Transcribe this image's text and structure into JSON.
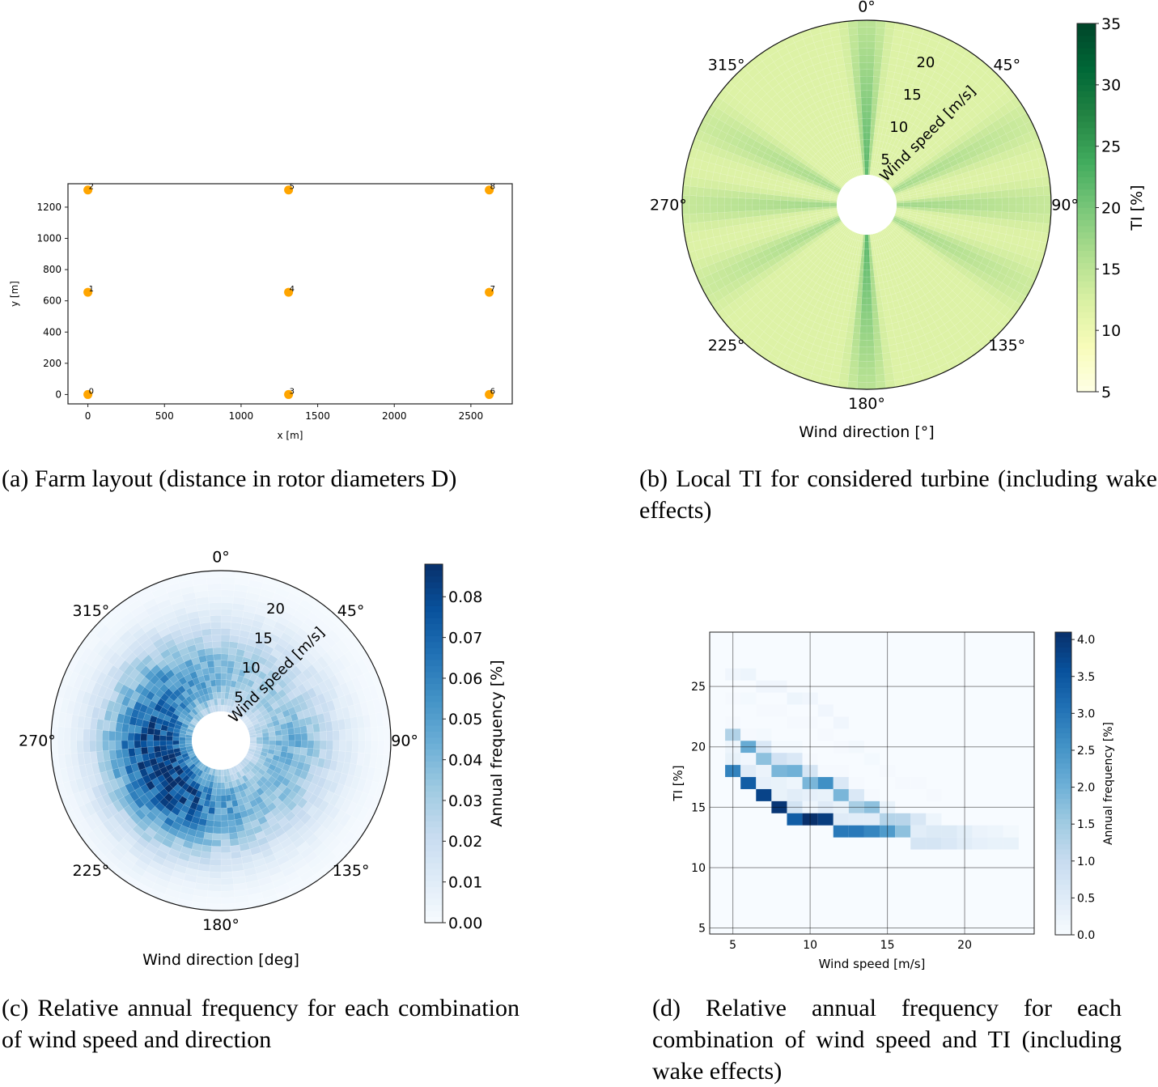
{
  "chart_data": [
    {
      "id": "a",
      "type": "scatter",
      "title": "",
      "xlabel": "x [m]",
      "ylabel": "y [m]",
      "xlim": [
        -130,
        2770
      ],
      "ylim": [
        -60,
        1350
      ],
      "xticks": [
        0,
        500,
        1000,
        1500,
        2000,
        2500
      ],
      "yticks": [
        0,
        200,
        400,
        600,
        800,
        1000,
        1200
      ],
      "marker_color": "#ffa500",
      "points": [
        {
          "label": "0",
          "x": 0,
          "y": 0
        },
        {
          "label": "1",
          "x": 0,
          "y": 655
        },
        {
          "label": "2",
          "x": 0,
          "y": 1310
        },
        {
          "label": "3",
          "x": 1310,
          "y": 0
        },
        {
          "label": "4",
          "x": 1310,
          "y": 655
        },
        {
          "label": "5",
          "x": 1310,
          "y": 1310
        },
        {
          "label": "6",
          "x": 2620,
          "y": 0
        },
        {
          "label": "7",
          "x": 2620,
          "y": 655
        },
        {
          "label": "8",
          "x": 2620,
          "y": 1310
        }
      ],
      "grid": false,
      "caption": "(a) Farm layout (distance in rotor diameters D)"
    },
    {
      "id": "b",
      "type": "heatmap",
      "projection": "polar",
      "xlabel": "Wind direction [°]",
      "radial_label": "Wind speed [m/s]",
      "angle_ticks": [
        "0°",
        "45°",
        "90°",
        "135°",
        "180°",
        "225°",
        "270°",
        "315°"
      ],
      "radial_ticks": [
        5,
        10,
        15,
        20
      ],
      "rlim": [
        3,
        25
      ],
      "colorbar": {
        "label": "TI [%]",
        "cmap": "YlGn",
        "vmin": 5,
        "vmax": 35,
        "ticks": [
          5,
          10,
          15,
          20,
          25,
          30,
          35
        ]
      },
      "ambient_ti": 12,
      "wake_sectors": [
        {
          "direction": 0,
          "half_width": 8,
          "peak_ti_low_speed": 23,
          "peak_ti_high_speed": 15
        },
        {
          "direction": 63,
          "half_width": 10,
          "peak_ti_low_speed": 17,
          "peak_ti_high_speed": 13.5
        },
        {
          "direction": 90,
          "half_width": 9,
          "peak_ti_low_speed": 17.5,
          "peak_ti_high_speed": 14
        },
        {
          "direction": 117,
          "half_width": 10,
          "peak_ti_low_speed": 17,
          "peak_ti_high_speed": 13.5
        },
        {
          "direction": 180,
          "half_width": 8,
          "peak_ti_low_speed": 23,
          "peak_ti_high_speed": 15
        },
        {
          "direction": 243,
          "half_width": 10,
          "peak_ti_low_speed": 17,
          "peak_ti_high_speed": 13.5
        },
        {
          "direction": 270,
          "half_width": 9,
          "peak_ti_low_speed": 17.5,
          "peak_ti_high_speed": 14
        },
        {
          "direction": 297,
          "half_width": 10,
          "peak_ti_low_speed": 17,
          "peak_ti_high_speed": 13.5
        }
      ],
      "caption": "(b) Local TI for considered turbine (including wake effects)"
    },
    {
      "id": "c",
      "type": "heatmap",
      "projection": "polar",
      "xlabel": "Wind direction [deg]",
      "radial_label": "Wind speed [m/s]",
      "angle_ticks": [
        "0°",
        "45°",
        "90°",
        "135°",
        "180°",
        "225°",
        "270°",
        "315°"
      ],
      "radial_ticks": [
        5,
        10,
        15,
        20
      ],
      "rlim": [
        3,
        25
      ],
      "colorbar": {
        "label": "Annual frequency [%]",
        "cmap": "Blues",
        "vmin": 0.0,
        "vmax": 0.088,
        "ticks": [
          "0.00",
          "0.01",
          "0.02",
          "0.03",
          "0.04",
          "0.05",
          "0.06",
          "0.07",
          "0.08"
        ]
      },
      "direction_weight": [
        {
          "direction": 0,
          "weight": 0.45
        },
        {
          "direction": 30,
          "weight": 0.35
        },
        {
          "direction": 60,
          "weight": 0.35
        },
        {
          "direction": 90,
          "weight": 0.5
        },
        {
          "direction": 120,
          "weight": 0.45
        },
        {
          "direction": 150,
          "weight": 0.45
        },
        {
          "direction": 180,
          "weight": 0.6
        },
        {
          "direction": 210,
          "weight": 0.9
        },
        {
          "direction": 240,
          "weight": 1.0
        },
        {
          "direction": 270,
          "weight": 0.95
        },
        {
          "direction": 300,
          "weight": 0.75
        },
        {
          "direction": 330,
          "weight": 0.6
        }
      ],
      "peak_speed": 10,
      "peak_value": 0.085,
      "caption": "(c) Relative annual frequency for each combination of wind speed and direction"
    },
    {
      "id": "d",
      "type": "heatmap",
      "xlabel": "Wind speed [m/s]",
      "ylabel": "TI [%]",
      "xlim": [
        3.5,
        24.5
      ],
      "ylim": [
        4.5,
        29.5
      ],
      "xticks": [
        5,
        10,
        15,
        20
      ],
      "yticks": [
        5,
        10,
        15,
        20,
        25
      ],
      "grid": true,
      "colorbar": {
        "label": "Annual frequency [%]",
        "cmap": "Blues",
        "vmin": 0.0,
        "vmax": 4.1,
        "ticks": [
          "0.0",
          "0.5",
          "1.0",
          "1.5",
          "2.0",
          "2.5",
          "3.0",
          "3.5",
          "4.0"
        ]
      },
      "cells": [
        {
          "ws": 5,
          "ti": 26,
          "v": 0.15
        },
        {
          "ws": 6,
          "ti": 26,
          "v": 0.2
        },
        {
          "ws": 7,
          "ti": 25,
          "v": 0.15
        },
        {
          "ws": 8,
          "ti": 25,
          "v": 0.15
        },
        {
          "ws": 5,
          "ti": 24,
          "v": 0.05
        },
        {
          "ws": 6,
          "ti": 24,
          "v": 0.08
        },
        {
          "ws": 9,
          "ti": 24,
          "v": 0.2
        },
        {
          "ws": 10,
          "ti": 24,
          "v": 0.15
        },
        {
          "ws": 7,
          "ti": 23,
          "v": 0.05
        },
        {
          "ws": 8,
          "ti": 23,
          "v": 0.05
        },
        {
          "ws": 11,
          "ti": 23,
          "v": 0.15
        },
        {
          "ws": 5,
          "ti": 22,
          "v": 0.05
        },
        {
          "ws": 9,
          "ti": 22,
          "v": 0.05
        },
        {
          "ws": 10,
          "ti": 22,
          "v": 0.05
        },
        {
          "ws": 12,
          "ti": 22,
          "v": 0.15
        },
        {
          "ws": 5,
          "ti": 21,
          "v": 1.3
        },
        {
          "ws": 6,
          "ti": 21,
          "v": 0.05
        },
        {
          "ws": 7,
          "ti": 21,
          "v": 0.08
        },
        {
          "ws": 11,
          "ti": 21,
          "v": 0.05
        },
        {
          "ws": 5,
          "ti": 20,
          "v": 0.2
        },
        {
          "ws": 6,
          "ti": 20,
          "v": 2.1
        },
        {
          "ws": 7,
          "ti": 20,
          "v": 0.6
        },
        {
          "ws": 8,
          "ti": 20,
          "v": 0.08
        },
        {
          "ws": 9,
          "ti": 20,
          "v": 0.08
        },
        {
          "ws": 12,
          "ti": 20,
          "v": 0.05
        },
        {
          "ws": 13,
          "ti": 20,
          "v": 0.1
        },
        {
          "ws": 5,
          "ti": 19,
          "v": 0.3
        },
        {
          "ws": 6,
          "ti": 19,
          "v": 0.15
        },
        {
          "ws": 7,
          "ti": 19,
          "v": 1.7
        },
        {
          "ws": 8,
          "ti": 19,
          "v": 0.8
        },
        {
          "ws": 9,
          "ti": 19,
          "v": 0.6
        },
        {
          "ws": 10,
          "ti": 19,
          "v": 0.05
        },
        {
          "ws": 14,
          "ti": 19,
          "v": 0.08
        },
        {
          "ws": 5,
          "ti": 18,
          "v": 2.8
        },
        {
          "ws": 6,
          "ti": 18,
          "v": 0.5
        },
        {
          "ws": 7,
          "ti": 18,
          "v": 0.25
        },
        {
          "ws": 8,
          "ti": 18,
          "v": 1.9
        },
        {
          "ws": 9,
          "ti": 18,
          "v": 2.0
        },
        {
          "ws": 10,
          "ti": 18,
          "v": 0.7
        },
        {
          "ws": 11,
          "ti": 18,
          "v": 0.05
        },
        {
          "ws": 12,
          "ti": 18,
          "v": 0.05
        },
        {
          "ws": 15,
          "ti": 18,
          "v": 0.05
        },
        {
          "ws": 6,
          "ti": 17,
          "v": 3.4
        },
        {
          "ws": 7,
          "ti": 17,
          "v": 0.35
        },
        {
          "ws": 8,
          "ti": 17,
          "v": 0.3
        },
        {
          "ws": 9,
          "ti": 17,
          "v": 0.2
        },
        {
          "ws": 10,
          "ti": 17,
          "v": 1.9
        },
        {
          "ws": 11,
          "ti": 17,
          "v": 2.6
        },
        {
          "ws": 12,
          "ti": 17,
          "v": 0.6
        },
        {
          "ws": 13,
          "ti": 17,
          "v": 0.05
        },
        {
          "ws": 16,
          "ti": 17,
          "v": 0.05
        },
        {
          "ws": 17,
          "ti": 17,
          "v": 0.05
        },
        {
          "ws": 7,
          "ti": 16,
          "v": 3.8
        },
        {
          "ws": 8,
          "ti": 16,
          "v": 0.3
        },
        {
          "ws": 9,
          "ti": 16,
          "v": 0.45
        },
        {
          "ws": 10,
          "ti": 16,
          "v": 0.35
        },
        {
          "ws": 11,
          "ti": 16,
          "v": 0.3
        },
        {
          "ws": 12,
          "ti": 16,
          "v": 1.9
        },
        {
          "ws": 13,
          "ti": 16,
          "v": 0.6
        },
        {
          "ws": 14,
          "ti": 16,
          "v": 0.05
        },
        {
          "ws": 18,
          "ti": 16,
          "v": 0.05
        },
        {
          "ws": 8,
          "ti": 15,
          "v": 4.0
        },
        {
          "ws": 9,
          "ti": 15,
          "v": 0.75
        },
        {
          "ws": 10,
          "ti": 15,
          "v": 0.2
        },
        {
          "ws": 11,
          "ti": 15,
          "v": 0.5
        },
        {
          "ws": 12,
          "ti": 15,
          "v": 0.3
        },
        {
          "ws": 13,
          "ti": 15,
          "v": 1.4
        },
        {
          "ws": 14,
          "ti": 15,
          "v": 1.7
        },
        {
          "ws": 15,
          "ti": 15,
          "v": 0.3
        },
        {
          "ws": 9,
          "ti": 14,
          "v": 3.4
        },
        {
          "ws": 10,
          "ti": 14,
          "v": 4.1
        },
        {
          "ws": 11,
          "ti": 14,
          "v": 3.9
        },
        {
          "ws": 12,
          "ti": 14,
          "v": 0.5
        },
        {
          "ws": 13,
          "ti": 14,
          "v": 0.45
        },
        {
          "ws": 14,
          "ti": 14,
          "v": 0.45
        },
        {
          "ws": 15,
          "ti": 14,
          "v": 1.25
        },
        {
          "ws": 16,
          "ti": 14,
          "v": 1.2
        },
        {
          "ws": 17,
          "ti": 14,
          "v": 0.65
        },
        {
          "ws": 18,
          "ti": 14,
          "v": 0.2
        },
        {
          "ws": 12,
          "ti": 13,
          "v": 2.95
        },
        {
          "ws": 13,
          "ti": 13,
          "v": 2.95
        },
        {
          "ws": 14,
          "ti": 13,
          "v": 2.75
        },
        {
          "ws": 15,
          "ti": 13,
          "v": 2.4
        },
        {
          "ws": 16,
          "ti": 13,
          "v": 1.7
        },
        {
          "ws": 17,
          "ti": 13,
          "v": 0.45
        },
        {
          "ws": 18,
          "ti": 13,
          "v": 0.55
        },
        {
          "ws": 19,
          "ti": 13,
          "v": 0.55
        },
        {
          "ws": 20,
          "ti": 13,
          "v": 0.4
        },
        {
          "ws": 21,
          "ti": 13,
          "v": 0.25
        },
        {
          "ws": 22,
          "ti": 13,
          "v": 0.2
        },
        {
          "ws": 23,
          "ti": 13,
          "v": 0.1
        },
        {
          "ws": 17,
          "ti": 12,
          "v": 0.7
        },
        {
          "ws": 18,
          "ti": 12,
          "v": 0.7
        },
        {
          "ws": 19,
          "ti": 12,
          "v": 0.6
        },
        {
          "ws": 20,
          "ti": 12,
          "v": 0.45
        },
        {
          "ws": 21,
          "ti": 12,
          "v": 0.35
        },
        {
          "ws": 22,
          "ti": 12,
          "v": 0.3
        },
        {
          "ws": 23,
          "ti": 12,
          "v": 0.3
        }
      ],
      "caption": "(d) Relative annual frequency for each combination of wind speed and TI (including wake effects)"
    }
  ],
  "captions": {
    "a": "(a) Farm layout (distance in rotor diameters D)",
    "b": "(b) Local TI for considered turbine (including wake effects)",
    "c": "(c) Relative annual frequency for each combination of wind speed and direction",
    "d": "(d) Relative annual frequency for each combination of wind speed and TI (including wake effects)"
  }
}
